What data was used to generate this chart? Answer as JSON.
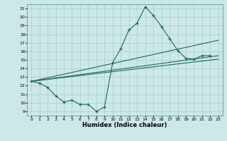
{
  "title": "",
  "xlabel": "Humidex (Indice chaleur)",
  "bg_color": "#cce8e8",
  "line_color": "#1a6b5a",
  "grid_color": "#b0d8d8",
  "xlim": [
    -0.5,
    23.5
  ],
  "ylim": [
    8.5,
    21.5
  ],
  "xticks": [
    0,
    1,
    2,
    3,
    4,
    5,
    6,
    7,
    8,
    9,
    10,
    11,
    12,
    13,
    14,
    15,
    16,
    17,
    18,
    19,
    20,
    21,
    22,
    23
  ],
  "yticks": [
    9,
    10,
    11,
    12,
    13,
    14,
    15,
    16,
    17,
    18,
    19,
    20,
    21
  ],
  "main_series": {
    "x": [
      0,
      1,
      2,
      3,
      4,
      5,
      6,
      7,
      8,
      9,
      10,
      11,
      12,
      13,
      14,
      15,
      16,
      17,
      18,
      19,
      20,
      21,
      22
    ],
    "y": [
      12.5,
      12.3,
      11.8,
      10.8,
      10.1,
      10.3,
      9.8,
      9.8,
      9.0,
      9.5,
      14.7,
      16.3,
      18.5,
      19.3,
      21.2,
      20.2,
      18.9,
      17.5,
      16.1,
      15.2,
      15.1,
      15.5,
      15.5
    ]
  },
  "trend_lines": [
    {
      "x": [
        0,
        23
      ],
      "y": [
        12.5,
        15.5
      ]
    },
    {
      "x": [
        0,
        23
      ],
      "y": [
        12.5,
        17.3
      ]
    },
    {
      "x": [
        0,
        23
      ],
      "y": [
        12.5,
        15.1
      ]
    }
  ]
}
